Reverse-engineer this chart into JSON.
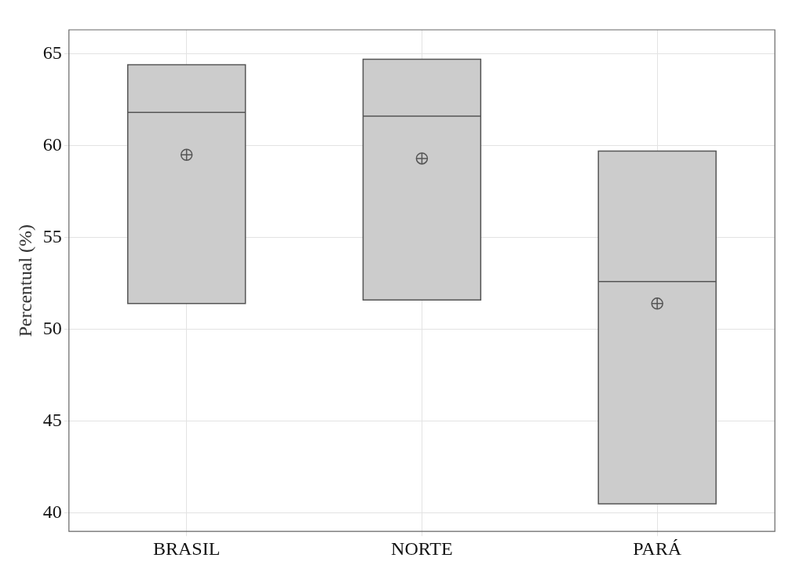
{
  "chart_data": {
    "type": "box",
    "categories": [
      "BRASIL",
      "NORTE",
      "PARÁ"
    ],
    "ylabel": "Percentual (%)",
    "ylim": [
      39,
      66.3
    ],
    "yticks": [
      40,
      45,
      50,
      55,
      60,
      65
    ],
    "grid": true,
    "series": [
      {
        "color": "#cccccc",
        "boxes": [
          {
            "low": 51.4,
            "q1": 51.4,
            "median": 61.8,
            "q3": 64.4,
            "high": 64.4,
            "mean": 59.5
          },
          {
            "low": 51.6,
            "q1": 51.6,
            "median": 61.6,
            "q3": 64.7,
            "high": 64.7,
            "mean": 59.3
          },
          {
            "low": 40.5,
            "q1": 40.5,
            "median": 52.6,
            "q3": 59.7,
            "high": 59.7,
            "mean": 51.4
          }
        ]
      }
    ]
  }
}
